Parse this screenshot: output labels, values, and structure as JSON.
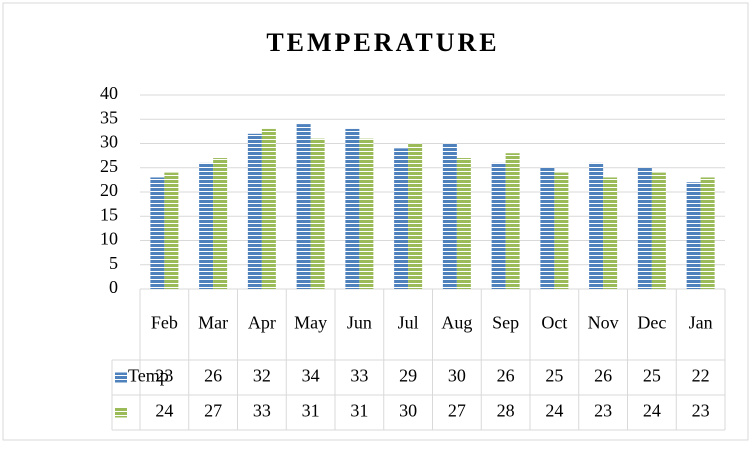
{
  "chart_data": {
    "type": "bar",
    "title": "TEMPERATURE",
    "categories": [
      "Feb",
      "Mar",
      "Apr",
      "May",
      "Jun",
      "Jul",
      "Aug",
      "Sep",
      "Oct",
      "Nov",
      "Dec",
      "Jan"
    ],
    "series": [
      {
        "name": "Temp",
        "color": "#4f81bd",
        "values": [
          23,
          26,
          32,
          34,
          33,
          29,
          30,
          26,
          25,
          26,
          25,
          22
        ]
      },
      {
        "color": "#9bbb59",
        "values": [
          24,
          27,
          33,
          31,
          31,
          30,
          27,
          28,
          24,
          23,
          24,
          23
        ]
      }
    ],
    "ylim": [
      0,
      40
    ],
    "yticks": [
      0,
      5,
      10,
      15,
      20,
      25,
      30,
      35,
      40
    ],
    "grid": true
  }
}
